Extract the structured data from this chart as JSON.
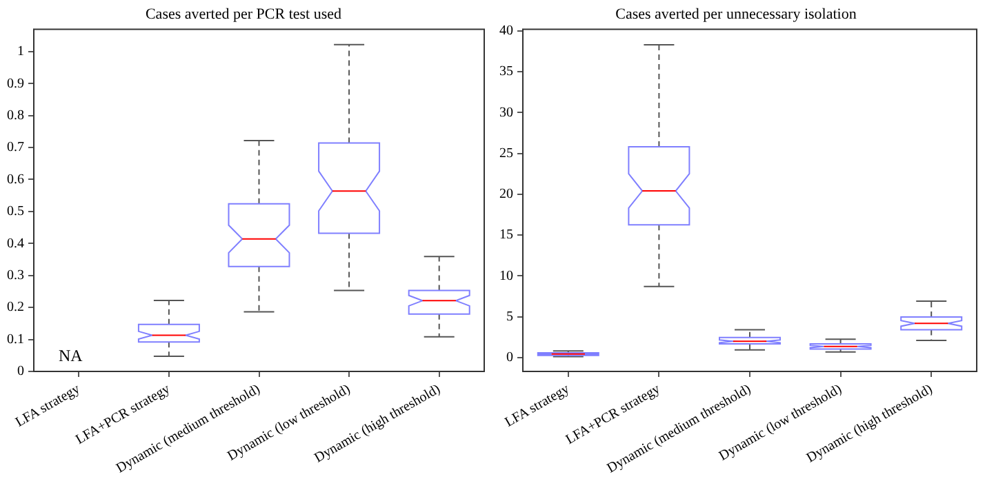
{
  "chart_data": [
    {
      "type": "box",
      "title": "Cases averted per PCR test used",
      "categories": [
        "LFA strategy",
        "LFA+PCR strategy",
        "Dynamic (medium threshold)",
        "Dynamic (low threshold)",
        "Dynamic (high threshold)"
      ],
      "color": "#7f7fff",
      "ylim": [
        0,
        1.07
      ],
      "yticks": [
        0,
        0.1,
        0.2,
        0.3,
        0.4,
        0.5,
        0.6,
        0.7,
        0.8,
        0.9,
        1
      ],
      "grid": false,
      "annotations": [
        "NA"
      ],
      "boxes": [
        null,
        {
          "low": 0.047,
          "q1": 0.092,
          "median": 0.113,
          "q3": 0.147,
          "high": 0.222
        },
        {
          "low": 0.186,
          "q1": 0.328,
          "median": 0.414,
          "q3": 0.524,
          "high": 0.722
        },
        {
          "low": 0.253,
          "q1": 0.432,
          "median": 0.564,
          "q3": 0.714,
          "high": 1.022
        },
        {
          "low": 0.108,
          "q1": 0.179,
          "median": 0.221,
          "q3": 0.253,
          "high": 0.359
        }
      ]
    },
    {
      "type": "box",
      "title": "Cases averted per unnecessary isolation",
      "categories": [
        "LFA strategy",
        "LFA+PCR strategy",
        "Dynamic (medium threshold)",
        "Dynamic (low threshold)",
        "Dynamic (high threshold)"
      ],
      "color": "#7f7fff",
      "ylim": [
        -1.7,
        40.2
      ],
      "yticks": [
        0,
        5,
        10,
        15,
        20,
        25,
        30,
        35,
        40
      ],
      "grid": false,
      "boxes": [
        {
          "low": 0.1,
          "q1": 0.26,
          "median": 0.42,
          "q3": 0.57,
          "high": 0.8
        },
        {
          "low": 8.7,
          "q1": 16.25,
          "median": 20.4,
          "q3": 25.8,
          "high": 38.3
        },
        {
          "low": 0.94,
          "q1": 1.67,
          "median": 1.98,
          "q3": 2.45,
          "high": 3.4
        },
        {
          "low": 0.68,
          "q1": 1.04,
          "median": 1.35,
          "q3": 1.67,
          "high": 2.24
        },
        {
          "low": 2.08,
          "q1": 3.39,
          "median": 4.17,
          "q3": 4.95,
          "high": 6.9
        }
      ]
    }
  ]
}
